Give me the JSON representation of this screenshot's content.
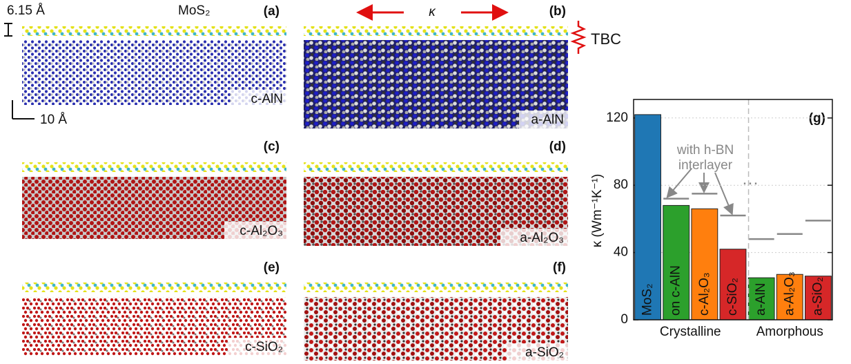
{
  "annotations": {
    "thickness": "6.15 Å",
    "layer": "MoS₂",
    "kappa": "κ",
    "tbc": "TBC",
    "scale": "10 Å"
  },
  "panels": [
    {
      "label": "(a)",
      "material": "c-AlN"
    },
    {
      "label": "(b)",
      "material": "a-AlN"
    },
    {
      "label": "(c)",
      "material": "c-Al₂O₃"
    },
    {
      "label": "(d)",
      "material": "a-Al₂O₃"
    },
    {
      "label": "(e)",
      "material": "c-SiO₂"
    },
    {
      "label": "(f)",
      "material": "a-SiO₂"
    }
  ],
  "chart_data": {
    "type": "bar",
    "panel_label": "(g)",
    "y_label": "κ (Wm⁻¹K⁻¹)",
    "categories": [
      "MoS₂",
      "on c-AlN",
      "c-Al₂O₃",
      "c-SiO₂",
      "a-AlN",
      "a-Al₂O₃",
      "a-SiO₂"
    ],
    "values": [
      122,
      68,
      66,
      42,
      25,
      27,
      26
    ],
    "colors": [
      "#1f77b4",
      "#2ca02c",
      "#ff7f0e",
      "#d62728",
      "#2ca02c",
      "#ff7f0e",
      "#d62728"
    ],
    "interlayer_values": [
      null,
      72,
      75,
      62,
      48,
      51,
      59
    ],
    "interlayer_note": [
      "with h-BN",
      "interlayer"
    ],
    "ellipsis": "···",
    "groups": [
      "Crystalline",
      "Amorphous"
    ],
    "ylim": [
      0,
      131
    ],
    "yticks": [
      0,
      40,
      80,
      120
    ],
    "grid": true
  }
}
